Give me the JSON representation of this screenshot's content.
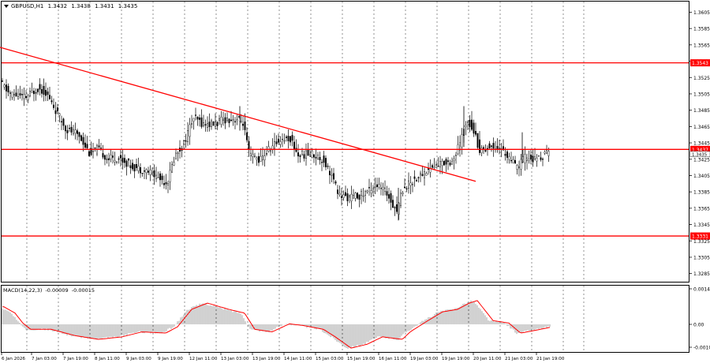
{
  "symbol_info": {
    "symbol": "GBPUSD,H1",
    "open": "1.3432",
    "high": "1.3438",
    "low": "1.3431",
    "close": "1.3435"
  },
  "macd_info": {
    "label": "MACD(14,22,3)",
    "main": "-0.00009",
    "signal": "-0.00015"
  },
  "colors": {
    "background": "#ffffff",
    "grid": "#4a4a4a",
    "candle": "#000000",
    "level_line": "#ff0000",
    "trendline": "#ff0000",
    "price_tag_bg": "#ff0000",
    "price_tag_text": "#ffffff",
    "histogram": "#9a9a9a",
    "signal_line": "#ff0000"
  },
  "price_axis": {
    "ticks": [
      "1.3605",
      "1.3585",
      "1.3565",
      "1.3545",
      "1.3525",
      "1.3505",
      "1.3485",
      "1.3465",
      "1.3445",
      "1.3425",
      "1.3405",
      "1.3385",
      "1.3365",
      "1.3345",
      "1.3325",
      "1.3305",
      "1.3285"
    ],
    "min": 1.3275,
    "max": 1.3618
  },
  "macd_axis": {
    "ticks": [
      "0.00142",
      "0.00",
      "-0.00102"
    ]
  },
  "time_axis": {
    "labels": [
      "6 Jan 2026",
      "7 Jan 03:00",
      "7 Jan 19:00",
      "8 Jan 11:00",
      "9 Jan 03:00",
      "9 Jan 19:00",
      "12 Jan 11:00",
      "13 Jan 03:00",
      "13 Jan 19:00",
      "14 Jan 11:00",
      "15 Jan 03:00",
      "15 Jan 19:00",
      "16 Jan 11:00",
      "19 Jan 03:00",
      "19 Jan 19:00",
      "20 Jan 11:00",
      "21 Jan 03:00",
      "21 Jan 19:00"
    ]
  },
  "levels": [
    {
      "price": 1.3543,
      "label": "1.3543"
    },
    {
      "price": 1.3437,
      "label": "1.3437"
    },
    {
      "price": 1.3331,
      "label": "1.3331"
    }
  ],
  "current_price_label": "1.3435",
  "trendline": {
    "start_price": 1.3562,
    "end_price": 1.3398
  }
}
